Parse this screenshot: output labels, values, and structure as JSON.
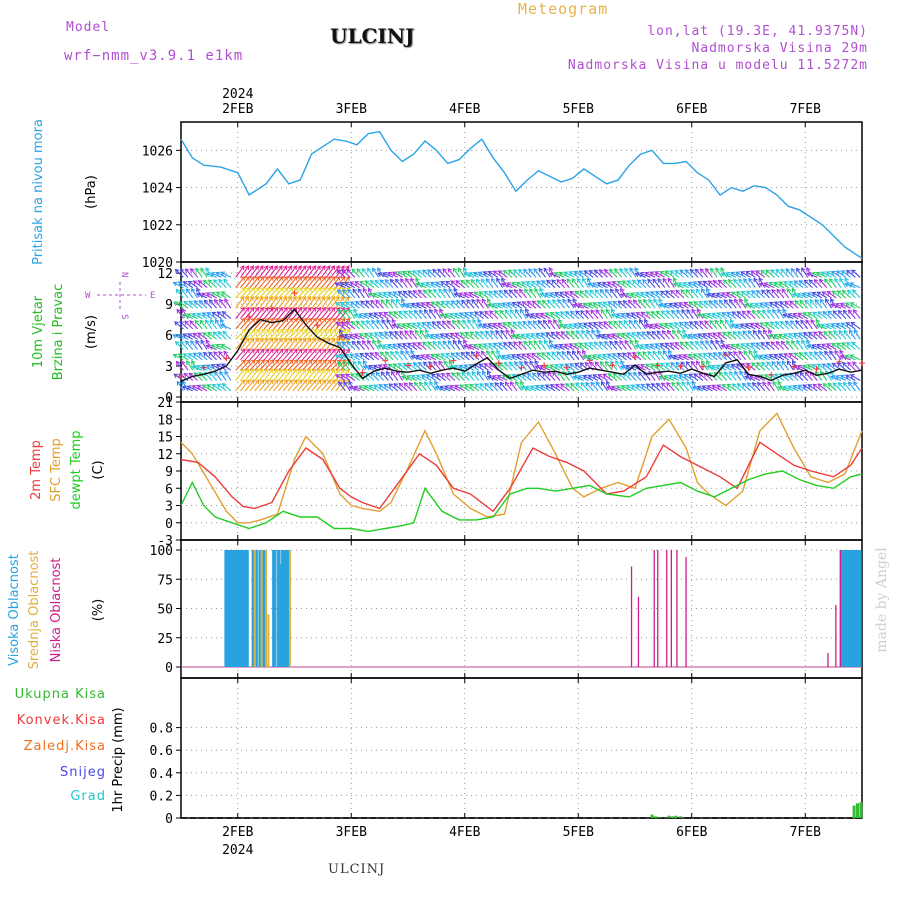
{
  "header": {
    "title": "ULCINJ",
    "meteogram_label": "Meteogram",
    "model_label": "Model",
    "model_version": "wrf−nmm_v3.9.1 e1km",
    "lonlat": "lon,lat (19.3E, 41.9375N)",
    "elevation": "Nadmorska Visina 29m",
    "model_elevation": "Nadmorska Visina u modelu 11.5272m",
    "footer": "ULCINJ",
    "credit": "made by Angel",
    "year_top": "2024",
    "year_bottom": "2024"
  },
  "colors": {
    "pressure": "#2aa3e6",
    "temp2m": "#ee3a3a",
    "sfc_temp": "#e0a030",
    "dewpoint": "#22cc22",
    "high_cloud": "#29a3e0",
    "mid_cloud": "#e0b040",
    "low_cloud": "#d01c8b",
    "precip": "#33bb33",
    "header_text": "#b04fd0"
  },
  "chart_data": [
    {
      "type": "line",
      "panel": "pressure",
      "title": "",
      "ylabel_parts": [
        "Pritisak na nivou mora",
        "(hPa)"
      ],
      "x_tick_labels": [
        "2FEB",
        "3FEB",
        "4FEB",
        "5FEB",
        "6FEB",
        "7FEB"
      ],
      "x_days": [
        0.5,
        6.5
      ],
      "ylim": [
        1020,
        1027.2
      ],
      "yticks": [
        1020,
        1022,
        1024,
        1026
      ],
      "grid": true,
      "series": [
        {
          "x": [
            0.5,
            0.6,
            0.7,
            0.85,
            1.0,
            1.1,
            1.25,
            1.35,
            1.45,
            1.55,
            1.65,
            1.75,
            1.85,
            1.95,
            2.05,
            2.15,
            2.25,
            2.35,
            2.45,
            2.55,
            2.65,
            2.75,
            2.85,
            2.95,
            3.05,
            3.15,
            3.25,
            3.35,
            3.45,
            3.55,
            3.65,
            3.75,
            3.85,
            3.95,
            4.05,
            4.15,
            4.25,
            4.35,
            4.45,
            4.55,
            4.65,
            4.75,
            4.85,
            4.95,
            5.05,
            5.15,
            5.25,
            5.35,
            5.45,
            5.55,
            5.65,
            5.75,
            5.85,
            5.95,
            6.05,
            6.15,
            6.25,
            6.35,
            6.45,
            6.5
          ],
          "values": [
            1026.6,
            1025.6,
            1025.2,
            1025.1,
            1024.8,
            1023.6,
            1024.2,
            1025.0,
            1024.2,
            1024.4,
            1025.8,
            1026.2,
            1026.6,
            1026.5,
            1026.3,
            1026.9,
            1027.0,
            1026.0,
            1025.4,
            1025.8,
            1026.5,
            1026.0,
            1025.3,
            1025.5,
            1026.1,
            1026.6,
            1025.6,
            1024.8,
            1023.8,
            1024.4,
            1024.9,
            1024.6,
            1024.3,
            1024.5,
            1025.0,
            1024.6,
            1024.2,
            1024.4,
            1025.2,
            1025.8,
            1026.0,
            1025.3,
            1025.3,
            1025.4,
            1024.8,
            1024.4,
            1023.6,
            1024.0,
            1023.8,
            1024.1,
            1024.0,
            1023.6,
            1023.0,
            1022.8,
            1022.4,
            1022.0,
            1021.4,
            1020.8,
            1020.4,
            1020.2
          ]
        }
      ]
    },
    {
      "type": "line",
      "panel": "wind",
      "title": "",
      "ylabel_parts": [
        "10m Vjetar",
        "Brzina i Pravac",
        "(m/s)"
      ],
      "direction_key": [
        "N",
        "S",
        "W",
        "E"
      ],
      "ylim": [
        0,
        12.5
      ],
      "yticks": [
        0,
        3,
        6,
        9,
        12
      ],
      "grid": true,
      "series": [
        {
          "name": "speed",
          "x": [
            0.5,
            0.6,
            0.7,
            0.8,
            0.9,
            1.0,
            1.1,
            1.2,
            1.3,
            1.4,
            1.5,
            1.6,
            1.7,
            1.8,
            1.9,
            2.0,
            2.1,
            2.2,
            2.3,
            2.4,
            2.5,
            2.6,
            2.7,
            2.8,
            2.9,
            3.0,
            3.1,
            3.2,
            3.3,
            3.4,
            3.5,
            3.6,
            3.7,
            3.8,
            3.9,
            4.0,
            4.1,
            4.2,
            4.3,
            4.4,
            4.5,
            4.6,
            4.7,
            4.8,
            4.9,
            5.0,
            5.1,
            5.2,
            5.3,
            5.4,
            5.5,
            5.6,
            5.7,
            5.8,
            5.9,
            6.0,
            6.1,
            6.2,
            6.3,
            6.4,
            6.5
          ],
          "values": [
            1.5,
            2.0,
            2.2,
            2.5,
            3.0,
            4.5,
            6.5,
            7.5,
            7.2,
            7.4,
            8.5,
            7.0,
            5.8,
            5.2,
            4.8,
            3.2,
            1.8,
            2.5,
            2.8,
            2.5,
            2.4,
            2.6,
            2.3,
            2.6,
            2.8,
            2.5,
            3.2,
            3.8,
            2.6,
            1.8,
            2.2,
            2.6,
            2.4,
            2.5,
            2.2,
            2.4,
            2.8,
            2.6,
            2.4,
            2.2,
            3.1,
            2.2,
            2.4,
            2.5,
            2.3,
            2.7,
            2.3,
            2.0,
            3.3,
            3.6,
            2.2,
            2.0,
            1.6,
            2.1,
            2.3,
            2.6,
            2.1,
            2.3,
            2.7,
            2.4,
            2.6
          ]
        }
      ]
    },
    {
      "type": "line",
      "panel": "temperature",
      "title": "",
      "ylabel_parts": [
        "2m Temp",
        "SFC Temp",
        "dewpt Temp",
        "(C)"
      ],
      "ylim": [
        -3,
        21
      ],
      "yticks": [
        -3,
        0,
        3,
        6,
        9,
        12,
        15,
        18,
        21
      ],
      "grid": true,
      "series": [
        {
          "name": "2m Temp",
          "x": [
            0.5,
            0.65,
            0.8,
            0.95,
            1.05,
            1.15,
            1.3,
            1.45,
            1.6,
            1.75,
            1.9,
            2.0,
            2.1,
            2.25,
            2.4,
            2.6,
            2.75,
            2.9,
            3.05,
            3.25,
            3.4,
            3.6,
            3.75,
            3.9,
            4.05,
            4.25,
            4.4,
            4.6,
            4.75,
            4.9,
            5.05,
            5.25,
            5.4,
            5.6,
            5.75,
            5.9,
            6.05,
            6.25,
            6.4,
            6.5
          ],
          "values": [
            11,
            10.5,
            8,
            4.5,
            2.8,
            2.5,
            3.5,
            9,
            13,
            11,
            6,
            4.5,
            3.5,
            2.5,
            6.5,
            12,
            10,
            6,
            5,
            2,
            6,
            13,
            11.5,
            10.5,
            9,
            5,
            5.5,
            8,
            13.5,
            11.5,
            10,
            8,
            6,
            14,
            12,
            10,
            9,
            8,
            10,
            13
          ]
        },
        {
          "name": "SFC Temp",
          "x": [
            0.5,
            0.6,
            0.75,
            0.9,
            1.0,
            1.1,
            1.2,
            1.35,
            1.5,
            1.6,
            1.75,
            1.9,
            2.0,
            2.1,
            2.25,
            2.35,
            2.5,
            2.65,
            2.75,
            2.9,
            3.05,
            3.2,
            3.35,
            3.5,
            3.65,
            3.8,
            3.95,
            4.05,
            4.2,
            4.35,
            4.5,
            4.65,
            4.8,
            4.95,
            5.05,
            5.15,
            5.3,
            5.45,
            5.6,
            5.75,
            5.9,
            6.05,
            6.2,
            6.35,
            6.5
          ],
          "values": [
            14,
            12,
            7,
            2,
            0,
            0,
            0.5,
            1.5,
            11,
            15,
            12,
            5,
            3,
            2.5,
            2,
            3.5,
            9.5,
            16,
            12,
            5,
            2.5,
            1,
            1.5,
            14,
            17.5,
            12,
            6,
            4.5,
            6,
            7,
            6,
            15,
            18,
            13,
            7,
            5,
            3,
            5.5,
            16,
            19,
            13,
            8,
            7,
            8.5,
            16
          ]
        },
        {
          "name": "dewpt Temp",
          "x": [
            0.5,
            0.6,
            0.7,
            0.8,
            0.95,
            1.1,
            1.25,
            1.4,
            1.55,
            1.7,
            1.85,
            2.0,
            2.15,
            2.3,
            2.45,
            2.55,
            2.65,
            2.8,
            2.95,
            3.1,
            3.25,
            3.4,
            3.55,
            3.65,
            3.8,
            3.95,
            4.1,
            4.25,
            4.45,
            4.6,
            4.75,
            4.9,
            5.05,
            5.2,
            5.35,
            5.5,
            5.65,
            5.8,
            5.95,
            6.1,
            6.25,
            6.4,
            6.5
          ],
          "values": [
            3,
            7,
            3,
            1,
            0,
            -1,
            0,
            2,
            1,
            1,
            -1,
            -1,
            -1.5,
            -1,
            -0.5,
            0,
            6,
            2,
            0.5,
            0.5,
            1,
            5,
            6,
            6,
            5.5,
            6,
            6.5,
            5,
            4.5,
            6,
            6.5,
            7,
            5.5,
            4.5,
            6,
            7.5,
            8.5,
            9,
            7.5,
            6.5,
            6,
            8,
            8.5
          ]
        }
      ]
    },
    {
      "type": "bar",
      "panel": "cloud",
      "title": "",
      "ylabel_parts": [
        "Visoka Oblacnost",
        "Srednja Oblacnost",
        "Niska Oblacnost",
        "(%)"
      ],
      "ylim": [
        0,
        100
      ],
      "yticks": [
        0,
        25,
        50,
        75,
        100
      ],
      "grid": true,
      "series": [
        {
          "name": "Visoka Oblacnost",
          "x": [
            0.9,
            0.92,
            0.94,
            0.96,
            0.98,
            1.0,
            1.02,
            1.04,
            1.06,
            1.08,
            1.14,
            1.16,
            1.2,
            1.22,
            1.24,
            1.32,
            1.36,
            1.38,
            1.4,
            1.42,
            1.44,
            6.32,
            6.34,
            6.36,
            6.38,
            6.4,
            6.42,
            6.44,
            6.46,
            6.48
          ],
          "values": [
            100,
            100,
            100,
            100,
            100,
            100,
            100,
            100,
            100,
            100,
            100,
            100,
            100,
            100,
            100,
            100,
            100,
            88,
            100,
            100,
            100,
            100,
            100,
            100,
            100,
            100,
            100,
            100,
            100,
            100
          ]
        },
        {
          "name": "Srednja Oblacnost",
          "x": [
            1.15,
            1.21,
            1.25,
            1.27,
            1.46
          ],
          "values": [
            100,
            100,
            100,
            45,
            100
          ]
        },
        {
          "name": "Niska Oblacnost",
          "x": [
            4.47,
            4.53,
            4.67,
            4.7,
            4.78,
            4.82,
            4.87,
            4.95,
            6.2,
            6.27,
            6.31
          ],
          "values": [
            86,
            60,
            100,
            100,
            100,
            100,
            100,
            94,
            12,
            53,
            100
          ]
        }
      ]
    },
    {
      "type": "bar",
      "panel": "precip",
      "title": "",
      "ylabel_parts": [
        "1hr Precip (mm)"
      ],
      "legend": [
        "Ukupna Kisa",
        "Konvek.Kisa",
        "Zaledj.Kisa",
        "Snijeg",
        "Grad"
      ],
      "ylim": [
        0,
        1.0
      ],
      "yticks": [
        0,
        0.2,
        0.4,
        0.6,
        0.8
      ],
      "grid": true,
      "series": [
        {
          "name": "Ukupna Kisa",
          "x": [
            4.65,
            4.68,
            4.72,
            4.8,
            4.83,
            4.86,
            4.9,
            6.43,
            6.46,
            6.49
          ],
          "values": [
            0.03,
            0.015,
            0.01,
            0.02,
            0.015,
            0.02,
            0.015,
            0.11,
            0.13,
            0.14
          ]
        }
      ]
    }
  ]
}
